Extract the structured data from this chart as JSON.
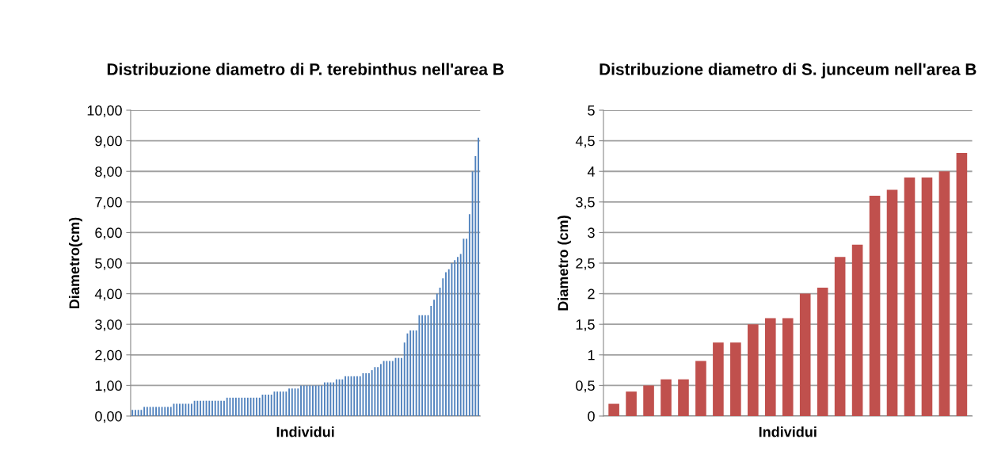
{
  "chart_data": [
    {
      "type": "bar",
      "title": "Distribuzione diametro di P. terebinthus nell'area B",
      "xlabel": "Individui",
      "ylabel": "Diametro(cm)",
      "categories": [
        null,
        null,
        null,
        null,
        null,
        null,
        null,
        null,
        null,
        null,
        null,
        null,
        null,
        null,
        null,
        null,
        null,
        null,
        null,
        null,
        null,
        null,
        null,
        null,
        null,
        null,
        null,
        null,
        null,
        null,
        null,
        null,
        null,
        null,
        null,
        null,
        null,
        null,
        null,
        null,
        null,
        null,
        null,
        null,
        null,
        null,
        null,
        null,
        null,
        null,
        null,
        null,
        null,
        null,
        null,
        null,
        null,
        null,
        null,
        null,
        null,
        null,
        null,
        null,
        null,
        null,
        null,
        null,
        null,
        null,
        null,
        null,
        null,
        null,
        null,
        null,
        null,
        null,
        null,
        null,
        null,
        null,
        null,
        null,
        null,
        null,
        null,
        null,
        null,
        null,
        null,
        null,
        null,
        null,
        null,
        null,
        null,
        null,
        null,
        null,
        null,
        null,
        null,
        null,
        null,
        null,
        null,
        null,
        null,
        null,
        null,
        null,
        null,
        null,
        null,
        null,
        null,
        null
      ],
      "values": [
        0.2,
        0.2,
        0.2,
        0.2,
        0.3,
        0.3,
        0.3,
        0.3,
        0.3,
        0.3,
        0.3,
        0.3,
        0.3,
        0.3,
        0.4,
        0.4,
        0.4,
        0.4,
        0.4,
        0.4,
        0.4,
        0.5,
        0.5,
        0.5,
        0.5,
        0.5,
        0.5,
        0.5,
        0.5,
        0.5,
        0.5,
        0.5,
        0.6,
        0.6,
        0.6,
        0.6,
        0.6,
        0.6,
        0.6,
        0.6,
        0.6,
        0.6,
        0.6,
        0.6,
        0.7,
        0.7,
        0.7,
        0.7,
        0.8,
        0.8,
        0.8,
        0.8,
        0.8,
        0.9,
        0.9,
        0.9,
        0.9,
        1.0,
        1.0,
        1.0,
        1.0,
        1.0,
        1.0,
        1.0,
        1.0,
        1.1,
        1.1,
        1.1,
        1.1,
        1.2,
        1.2,
        1.2,
        1.3,
        1.3,
        1.3,
        1.3,
        1.3,
        1.3,
        1.4,
        1.4,
        1.4,
        1.5,
        1.6,
        1.6,
        1.7,
        1.8,
        1.8,
        1.8,
        1.8,
        1.9,
        1.9,
        1.9,
        2.4,
        2.7,
        2.8,
        2.8,
        2.8,
        3.3,
        3.3,
        3.3,
        3.3,
        3.6,
        3.8,
        4.0,
        4.2,
        4.5,
        4.7,
        4.8,
        5.0,
        5.1,
        5.2,
        5.3,
        5.8,
        5.8,
        6.6,
        8.0,
        8.5,
        9.1
      ],
      "color": "#4f81bd",
      "ylim": [
        0,
        10
      ],
      "yticks": [
        {
          "value": 0,
          "label": "0,00"
        },
        {
          "value": 1,
          "label": "1,00"
        },
        {
          "value": 2,
          "label": "2,00"
        },
        {
          "value": 3,
          "label": "3,00"
        },
        {
          "value": 4,
          "label": "4,00"
        },
        {
          "value": 5,
          "label": "5,00"
        },
        {
          "value": 6,
          "label": "6,00"
        },
        {
          "value": 7,
          "label": "7,00"
        },
        {
          "value": 8,
          "label": "8,00"
        },
        {
          "value": 9,
          "label": "9,00"
        },
        {
          "value": 10,
          "label": "10,00"
        }
      ],
      "grid": "y",
      "legend": false
    },
    {
      "type": "bar",
      "title": "Distribuzione diametro di S. junceum nell'area B",
      "xlabel": "Individui",
      "ylabel": "Diametro (cm)",
      "categories": [
        null,
        null,
        null,
        null,
        null,
        null,
        null,
        null,
        null,
        null,
        null,
        null,
        null,
        null,
        null,
        null,
        null,
        null,
        null,
        null,
        null
      ],
      "values": [
        0.2,
        0.4,
        0.5,
        0.6,
        0.6,
        0.9,
        1.2,
        1.2,
        1.5,
        1.6,
        1.6,
        2.0,
        2.1,
        2.6,
        2.8,
        3.6,
        3.7,
        3.9,
        3.9,
        4.0,
        4.3
      ],
      "color": "#c0504d",
      "ylim": [
        0,
        5
      ],
      "yticks": [
        0,
        {
          "value": 0.5,
          "label": "0,5"
        },
        1,
        {
          "value": 1.5,
          "label": "1,5"
        },
        2,
        {
          "value": 2.5,
          "label": "2,5"
        },
        3,
        {
          "value": 3.5,
          "label": "3,5"
        },
        4,
        {
          "value": 4.5,
          "label": "4,5"
        },
        5
      ],
      "grid": "y",
      "legend": false
    }
  ]
}
